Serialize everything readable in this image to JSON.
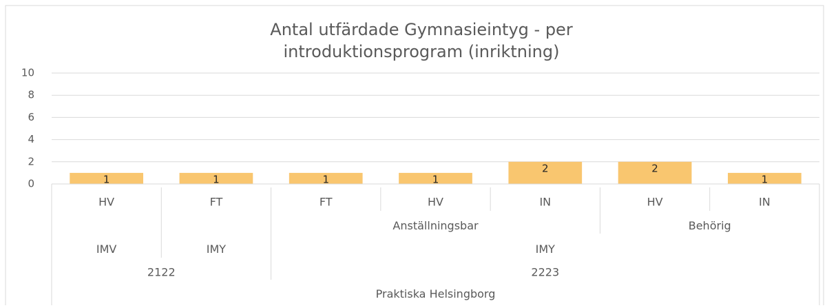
{
  "chart_data": {
    "type": "bar",
    "title": [
      "Antal utfärdade Gymnasieintyg - per",
      "introduktionsprogram (inriktning)"
    ],
    "categories": [
      "HV",
      "FT",
      "FT",
      "HV",
      "IN",
      "HV",
      "IN"
    ],
    "category_groups": [
      [
        {
          "label": null,
          "count": 2
        },
        {
          "label": "Anställningsbar",
          "count": 3
        },
        {
          "label": "Behörig",
          "count": 2
        }
      ],
      [
        {
          "label": "IMV",
          "count": 1
        },
        {
          "label": "IMY",
          "count": 1
        },
        {
          "label": "IMY",
          "count": 5
        }
      ],
      [
        {
          "label": "2122",
          "count": 2
        },
        {
          "label": "2223",
          "count": 5
        }
      ],
      [
        {
          "label": "Praktiska Helsingborg",
          "count": 7
        }
      ]
    ],
    "values": [
      1,
      1,
      1,
      1,
      2,
      2,
      1
    ],
    "color": "#f9c66f",
    "ylim": [
      0,
      10
    ],
    "yticks": [
      0,
      2,
      4,
      6,
      8,
      10
    ],
    "grid": true,
    "data_labels": true
  }
}
